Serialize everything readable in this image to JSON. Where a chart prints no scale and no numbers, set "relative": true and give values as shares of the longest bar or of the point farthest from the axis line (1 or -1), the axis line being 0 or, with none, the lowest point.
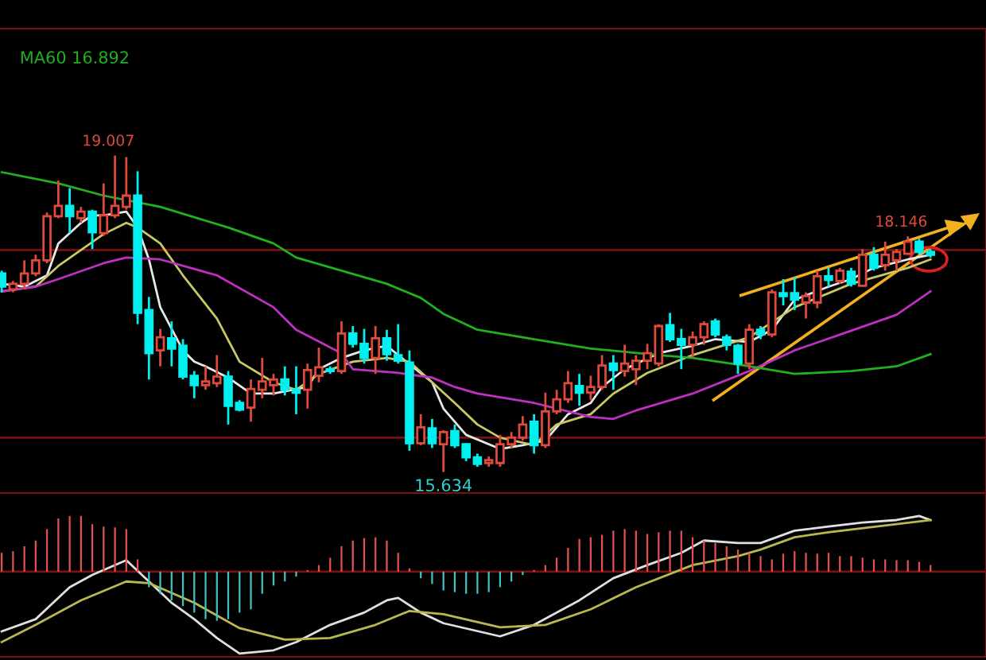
{
  "chart_data": [
    {
      "type": "candlestick",
      "categories": [
        null,
        null,
        null,
        null,
        null,
        null,
        null,
        null,
        null,
        null,
        null,
        null,
        null,
        null,
        null,
        null,
        null,
        null,
        null,
        null,
        null,
        null,
        null,
        null,
        null,
        null,
        null,
        null,
        null,
        null,
        null,
        null,
        null,
        null,
        null,
        null,
        null,
        null,
        null,
        null,
        null,
        null,
        null,
        null,
        null,
        null,
        null,
        null,
        null,
        null,
        null,
        null,
        null,
        null,
        null,
        null,
        null,
        null,
        null,
        null,
        null,
        null,
        null,
        null,
        null,
        null,
        null,
        null,
        null,
        null,
        null,
        null,
        null,
        null,
        null,
        null,
        null,
        null,
        null,
        null,
        null,
        null,
        null
      ],
      "ohlc": [
        [
          17.75,
          17.78,
          17.55,
          17.61
        ],
        [
          17.58,
          17.67,
          17.55,
          17.64
        ],
        [
          17.64,
          17.89,
          17.58,
          17.75
        ],
        [
          17.75,
          17.95,
          17.72,
          17.89
        ],
        [
          17.89,
          18.4,
          17.86,
          18.36
        ],
        [
          18.36,
          18.74,
          18.34,
          18.47
        ],
        [
          18.47,
          18.66,
          18.18,
          18.36
        ],
        [
          18.34,
          18.46,
          18.29,
          18.41
        ],
        [
          18.41,
          18.43,
          18.01,
          18.19
        ],
        [
          18.18,
          18.71,
          18.15,
          18.37
        ],
        [
          18.37,
          19.007,
          18.34,
          18.47
        ],
        [
          18.46,
          18.99,
          18.43,
          18.58
        ],
        [
          18.58,
          18.84,
          17.21,
          17.33
        ],
        [
          17.36,
          17.5,
          16.62,
          16.9
        ],
        [
          16.93,
          17.16,
          16.76,
          17.07
        ],
        [
          17.06,
          17.24,
          16.76,
          16.95
        ],
        [
          16.98,
          17.05,
          16.62,
          16.65
        ],
        [
          16.66,
          16.71,
          16.42,
          16.56
        ],
        [
          16.56,
          16.76,
          16.51,
          16.6
        ],
        [
          16.58,
          16.88,
          16.54,
          16.65
        ],
        [
          16.65,
          16.71,
          16.14,
          16.34
        ],
        [
          16.37,
          16.4,
          16.28,
          16.3
        ],
        [
          16.32,
          16.62,
          16.17,
          16.52
        ],
        [
          16.51,
          16.85,
          16.42,
          16.6
        ],
        [
          16.56,
          16.68,
          16.45,
          16.62
        ],
        [
          16.62,
          16.76,
          16.45,
          16.51
        ],
        [
          16.51,
          16.76,
          16.25,
          16.48
        ],
        [
          16.51,
          16.79,
          16.31,
          16.72
        ],
        [
          16.66,
          16.96,
          16.59,
          16.75
        ],
        [
          16.73,
          16.76,
          16.68,
          16.71
        ],
        [
          16.71,
          17.24,
          16.68,
          17.11
        ],
        [
          17.11,
          17.19,
          16.96,
          17.0
        ],
        [
          17.0,
          17.16,
          16.79,
          16.85
        ],
        [
          16.85,
          17.19,
          16.68,
          17.06
        ],
        [
          17.06,
          17.15,
          16.82,
          16.89
        ],
        [
          16.88,
          17.21,
          16.79,
          16.82
        ],
        [
          16.8,
          16.93,
          15.86,
          15.94
        ],
        [
          15.94,
          16.25,
          15.92,
          16.11
        ],
        [
          16.1,
          16.2,
          15.89,
          15.94
        ],
        [
          15.93,
          16.08,
          15.634,
          16.06
        ],
        [
          16.07,
          16.14,
          15.89,
          15.92
        ],
        [
          15.93,
          15.94,
          15.75,
          15.79
        ],
        [
          15.79,
          15.83,
          15.69,
          15.72
        ],
        [
          15.73,
          15.8,
          15.69,
          15.76
        ],
        [
          15.73,
          16.03,
          15.69,
          15.93
        ],
        [
          15.93,
          16.06,
          15.89,
          16.0
        ],
        [
          16.0,
          16.23,
          15.97,
          16.14
        ],
        [
          16.17,
          16.25,
          15.83,
          15.92
        ],
        [
          15.92,
          16.48,
          15.89,
          16.28
        ],
        [
          16.28,
          16.51,
          16.25,
          16.41
        ],
        [
          16.41,
          16.71,
          16.37,
          16.58
        ],
        [
          16.55,
          16.68,
          16.34,
          16.48
        ],
        [
          16.48,
          16.66,
          16.4,
          16.54
        ],
        [
          16.54,
          16.88,
          16.51,
          16.77
        ],
        [
          16.79,
          16.88,
          16.51,
          16.72
        ],
        [
          16.71,
          16.99,
          16.65,
          16.79
        ],
        [
          16.73,
          16.88,
          16.56,
          16.82
        ],
        [
          16.82,
          17.0,
          16.73,
          16.9
        ],
        [
          16.79,
          17.21,
          16.76,
          17.19
        ],
        [
          17.2,
          17.33,
          17.02,
          17.05
        ],
        [
          17.05,
          17.16,
          16.73,
          16.99
        ],
        [
          16.99,
          17.13,
          16.85,
          17.07
        ],
        [
          17.07,
          17.24,
          16.99,
          17.21
        ],
        [
          17.24,
          17.27,
          17.07,
          17.1
        ],
        [
          17.07,
          17.1,
          16.93,
          16.99
        ],
        [
          16.98,
          17.0,
          16.68,
          16.79
        ],
        [
          16.79,
          17.21,
          16.73,
          17.15
        ],
        [
          17.15,
          17.19,
          17.05,
          17.1
        ],
        [
          17.1,
          17.58,
          17.07,
          17.55
        ],
        [
          17.54,
          17.69,
          17.41,
          17.51
        ],
        [
          17.54,
          17.71,
          17.36,
          17.47
        ],
        [
          17.44,
          17.55,
          17.27,
          17.51
        ],
        [
          17.44,
          17.78,
          17.38,
          17.72
        ],
        [
          17.72,
          17.81,
          17.61,
          17.68
        ],
        [
          17.67,
          17.81,
          17.64,
          17.78
        ],
        [
          17.77,
          17.81,
          17.61,
          17.64
        ],
        [
          17.62,
          18.01,
          17.61,
          17.95
        ],
        [
          17.95,
          18.03,
          17.78,
          17.81
        ],
        [
          17.84,
          18.09,
          17.78,
          17.95
        ],
        [
          17.89,
          18.01,
          17.78,
          17.98
        ],
        [
          17.96,
          18.146,
          17.95,
          18.09
        ],
        [
          18.09,
          18.12,
          17.95,
          17.98
        ],
        [
          17.98,
          18.01,
          17.92,
          17.95
        ]
      ],
      "series": [
        {
          "type": "line",
          "color": "#e8e8e8",
          "values": [
            17.64,
            null,
            17.61,
            null,
            17.73,
            18.07,
            null,
            18.29,
            18.37,
            18.37,
            null,
            18.41,
            18.24,
            17.9,
            17.39,
            null,
            16.93,
            16.81,
            16.76,
            null,
            16.64,
            null,
            16.47,
            null,
            16.47,
            null,
            null,
            16.54,
            16.73,
            null,
            16.85,
            null,
            16.93,
            null,
            16.98,
            16.88,
            null,
            null,
            16.59,
            16.31,
            null,
            16.03,
            null,
            null,
            15.88,
            null,
            15.92,
            null,
            15.97,
            null,
            16.25,
            null,
            16.37,
            16.54,
            null,
            16.73,
            null,
            null,
            16.9,
            null,
            null,
            16.98,
            null,
            17.05,
            null,
            null,
            17.02,
            null,
            17.15,
            null,
            17.47,
            null,
            null,
            17.61,
            null,
            17.69,
            null,
            17.81,
            null,
            null,
            17.9,
            null,
            17.95
          ]
        },
        {
          "type": "line",
          "color": "#c8c864",
          "values": [
            17.56,
            null,
            null,
            17.61,
            null,
            17.83,
            null,
            18.0,
            null,
            18.17,
            null,
            18.29,
            18.24,
            null,
            18.07,
            null,
            17.73,
            null,
            null,
            17.27,
            null,
            16.81,
            null,
            null,
            16.59,
            null,
            16.51,
            null,
            16.68,
            null,
            null,
            16.81,
            null,
            null,
            16.85,
            null,
            16.81,
            null,
            16.59,
            null,
            16.37,
            null,
            16.14,
            null,
            16.0,
            null,
            null,
            15.92,
            null,
            16.14,
            null,
            null,
            16.25,
            null,
            16.47,
            null,
            null,
            16.69,
            null,
            null,
            null,
            16.88,
            null,
            null,
            null,
            null,
            17.07,
            null,
            null,
            null,
            17.39,
            null,
            null,
            null,
            null,
            17.64,
            null,
            null,
            null,
            null,
            17.81,
            null,
            17.9
          ]
        },
        {
          "type": "line",
          "color": "#c030c0",
          "values": [
            17.56,
            null,
            null,
            17.61,
            null,
            17.69,
            null,
            null,
            null,
            17.86,
            null,
            17.92,
            null,
            null,
            17.9,
            null,
            null,
            null,
            null,
            17.73,
            null,
            null,
            null,
            null,
            17.39,
            null,
            17.15,
            null,
            null,
            null,
            16.9,
            16.73,
            null,
            16.71,
            null,
            16.69,
            null,
            null,
            16.64,
            null,
            16.54,
            null,
            16.47,
            null,
            null,
            null,
            null,
            16.37,
            null,
            16.31,
            null,
            null,
            16.22,
            null,
            16.2,
            null,
            16.29,
            null,
            null,
            null,
            null,
            16.47,
            null,
            null,
            null,
            null,
            16.71,
            null,
            null,
            null,
            16.93,
            null,
            null,
            null,
            null,
            17.14,
            null,
            null,
            null,
            17.31,
            null,
            null,
            17.56
          ]
        },
        {
          "type": "line",
          "name": "MA60 16.892",
          "color": "#20b020",
          "values": [
            18.83,
            null,
            null,
            null,
            null,
            18.71,
            null,
            null,
            null,
            18.58,
            null,
            null,
            null,
            null,
            18.46,
            null,
            null,
            null,
            null,
            null,
            18.24,
            null,
            null,
            null,
            18.07,
            null,
            17.92,
            null,
            null,
            null,
            17.78,
            null,
            null,
            null,
            17.64,
            null,
            null,
            17.49,
            null,
            17.32,
            null,
            null,
            17.15,
            null,
            null,
            null,
            null,
            17.05,
            null,
            null,
            null,
            null,
            16.95,
            null,
            null,
            null,
            null,
            null,
            16.88,
            null,
            null,
            16.85,
            null,
            null,
            null,
            null,
            16.76,
            null,
            null,
            null,
            16.68,
            null,
            null,
            null,
            null,
            16.71,
            null,
            null,
            null,
            16.76,
            null,
            null,
            16.89
          ]
        }
      ],
      "ylim": [
        15.41,
        20.36
      ],
      "yticks": [
        {
          "value": 16,
          "label": null
        },
        {
          "value": 18,
          "label": null
        }
      ],
      "grid": "y",
      "annotations": [
        {
          "text": "19.007",
          "y": 19.007
        },
        {
          "text": "18.146",
          "y": 18.146
        },
        {
          "text": "15.634",
          "y": 15.634
        }
      ]
    },
    {
      "type": "bar",
      "relative": true,
      "ref_lines": [
        {
          "axis": "y",
          "value": 0,
          "color": "#7a1010"
        }
      ],
      "categories": [
        null,
        null,
        null,
        null,
        null,
        null,
        null,
        null,
        null,
        null,
        null,
        null,
        null,
        null,
        null,
        null,
        null,
        null,
        null,
        null,
        null,
        null,
        null,
        null,
        null,
        null,
        null,
        null,
        null,
        null,
        null,
        null,
        null,
        null,
        null,
        null,
        null,
        null,
        null,
        null,
        null,
        null,
        null,
        null,
        null,
        null,
        null,
        null,
        null,
        null,
        null,
        null,
        null,
        null,
        null,
        null,
        null,
        null,
        null,
        null,
        null,
        null,
        null,
        null,
        null,
        null,
        null,
        null,
        null,
        null,
        null,
        null,
        null,
        null,
        null,
        null,
        null,
        null,
        null,
        null,
        null,
        null,
        null
      ],
      "series": [
        {
          "type": "bar",
          "colors": [
            "#e05050",
            "#e05050",
            "#e05050",
            "#e05050",
            "#e05050",
            "#e05050",
            "#e05050",
            "#e05050",
            "#e05050",
            "#e05050",
            "#e05050",
            "#e05050",
            "#e05050",
            "#40c0c0",
            "#40c0c0",
            "#40c0c0",
            "#40c0c0",
            "#40c0c0",
            "#40c0c0",
            "#40c0c0",
            "#40c0c0",
            "#40c0c0",
            "#40c0c0",
            "#40c0c0",
            "#40c0c0",
            "#40c0c0",
            "#40c0c0",
            "#e05050",
            "#e05050",
            "#e05050",
            "#e05050",
            "#e05050",
            "#e05050",
            "#e05050",
            "#e05050",
            "#e05050",
            "#e05050",
            "#40c0c0",
            "#40c0c0",
            "#40c0c0",
            "#40c0c0",
            "#40c0c0",
            "#40c0c0",
            "#40c0c0",
            "#40c0c0",
            "#40c0c0",
            "#40c0c0",
            "#e05050",
            "#e05050",
            "#e05050",
            "#e05050",
            "#e05050",
            "#e05050",
            "#e05050",
            "#e05050",
            "#e05050",
            "#e05050",
            "#e05050",
            "#e05050",
            "#e05050",
            "#e05050",
            "#e05050",
            "#e05050",
            "#e05050",
            "#e05050",
            "#e05050",
            "#e05050",
            "#e05050",
            "#e05050",
            "#e05050",
            "#e05050",
            "#e05050",
            "#e05050",
            "#e05050",
            "#e05050",
            "#e05050",
            "#e05050",
            "#e05050",
            "#e05050",
            "#e05050",
            "#e05050",
            "#e05050",
            "#e05050"
          ],
          "values": [
            0.23,
            0.25,
            0.31,
            0.38,
            0.52,
            0.65,
            0.68,
            0.68,
            0.58,
            0.55,
            0.54,
            0.52,
            0.15,
            -0.19,
            -0.27,
            -0.35,
            -0.42,
            -0.5,
            -0.58,
            -0.6,
            -0.58,
            -0.5,
            -0.46,
            -0.27,
            -0.17,
            -0.12,
            -0.06,
            0.02,
            0.08,
            0.17,
            0.31,
            0.38,
            0.41,
            0.42,
            0.38,
            0.23,
            0.04,
            -0.08,
            -0.15,
            -0.23,
            -0.25,
            -0.27,
            -0.27,
            -0.25,
            -0.19,
            -0.12,
            -0.04,
            0.02,
            0.08,
            0.17,
            0.29,
            0.4,
            0.42,
            0.45,
            0.5,
            0.52,
            0.5,
            0.46,
            0.48,
            0.5,
            0.5,
            0.42,
            0.38,
            0.35,
            0.31,
            0.27,
            0.23,
            0.19,
            0.15,
            0.22,
            0.25,
            0.23,
            0.22,
            0.23,
            0.19,
            0.19,
            0.17,
            0.15,
            0.15,
            0.14,
            0.14,
            0.12,
            0.08
          ]
        },
        {
          "type": "line",
          "color": "#e0e0e0",
          "values": [
            -0.73,
            null,
            null,
            -0.58,
            null,
            null,
            -0.19,
            null,
            -0.04,
            null,
            null,
            0.14,
            null,
            -0.12,
            null,
            -0.38,
            null,
            -0.58,
            null,
            -0.81,
            null,
            -1.0,
            null,
            null,
            -0.96,
            null,
            -0.86,
            null,
            null,
            -0.65,
            null,
            null,
            -0.5,
            null,
            -0.35,
            -0.32,
            null,
            -0.5,
            null,
            -0.63,
            null,
            null,
            null,
            null,
            -0.79,
            null,
            null,
            -0.65,
            null,
            null,
            null,
            -0.35,
            null,
            null,
            -0.08,
            null,
            null,
            0.08,
            null,
            null,
            0.23,
            null,
            0.38,
            null,
            null,
            0.35,
            null,
            0.35,
            null,
            null,
            0.5,
            null,
            null,
            0.55,
            null,
            null,
            0.6,
            null,
            null,
            0.63,
            null,
            0.68,
            0.63
          ]
        },
        {
          "type": "line",
          "color": "#b8b850",
          "values": [
            -0.86,
            null,
            null,
            -0.65,
            null,
            null,
            null,
            -0.35,
            null,
            null,
            null,
            -0.12,
            null,
            -0.14,
            null,
            null,
            null,
            -0.38,
            null,
            null,
            null,
            -0.69,
            null,
            null,
            null,
            -0.83,
            null,
            null,
            null,
            -0.81,
            null,
            null,
            null,
            -0.65,
            null,
            null,
            -0.48,
            null,
            null,
            -0.52,
            null,
            null,
            null,
            null,
            -0.68,
            null,
            null,
            null,
            -0.65,
            null,
            null,
            null,
            -0.46,
            null,
            null,
            null,
            -0.19,
            null,
            null,
            null,
            null,
            0.08,
            null,
            null,
            null,
            0.19,
            null,
            0.27,
            null,
            null,
            0.42,
            null,
            null,
            0.48,
            null,
            null,
            null,
            null,
            null,
            0.58,
            null,
            null,
            0.63
          ]
        }
      ]
    }
  ]
}
